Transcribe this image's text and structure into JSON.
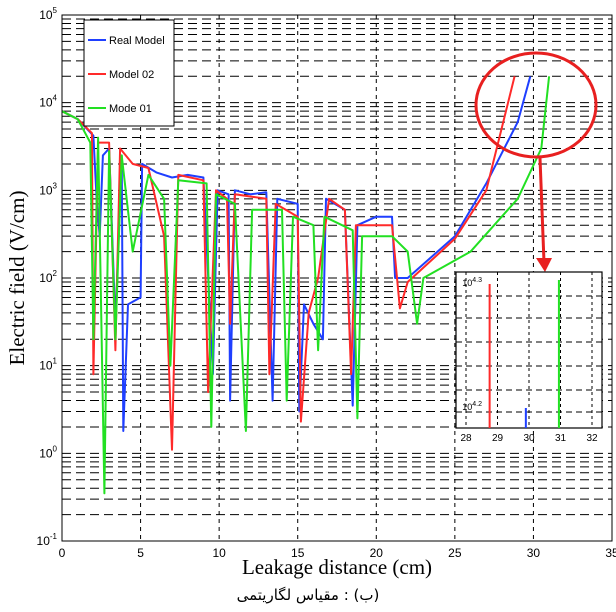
{
  "chart_data": {
    "type": "line",
    "title": "",
    "xlabel": "Leakage distance (cm)",
    "ylabel": "Electric field (V/cm)",
    "xlim": [
      0,
      35
    ],
    "ylim_exp": [
      -1,
      5
    ],
    "yscale": "log",
    "grid": "dashed",
    "legend_position": "top-left",
    "x_ticks": [
      "0",
      "5",
      "10",
      "15",
      "20",
      "25",
      "30",
      "35"
    ],
    "y_ticks": [
      {
        "base": "10",
        "exp": "-1"
      },
      {
        "base": "10",
        "exp": "0"
      },
      {
        "base": "10",
        "exp": "1"
      },
      {
        "base": "10",
        "exp": "2"
      },
      {
        "base": "10",
        "exp": "3"
      },
      {
        "base": "10",
        "exp": "4"
      },
      {
        "base": "10",
        "exp": "5"
      }
    ],
    "series": [
      {
        "name": "Real Model",
        "color": "#1f3fff",
        "points": [
          [
            0,
            8000
          ],
          [
            1,
            6500
          ],
          [
            2,
            4200
          ],
          [
            2.2,
            800
          ],
          [
            2.4,
            300
          ],
          [
            2.6,
            2500
          ],
          [
            3,
            3000
          ],
          [
            3.4,
            30
          ],
          [
            3.8,
            2500
          ],
          [
            3.9,
            1.8
          ],
          [
            4.2,
            50
          ],
          [
            5.0,
            60
          ],
          [
            5.1,
            2000
          ],
          [
            6,
            1600
          ],
          [
            7,
            1400
          ],
          [
            8,
            1500
          ],
          [
            9,
            1400
          ],
          [
            9.6,
            8
          ],
          [
            9.9,
            1000
          ],
          [
            10.6,
            900
          ],
          [
            10.7,
            4
          ],
          [
            11.0,
            1000
          ],
          [
            12.0,
            900
          ],
          [
            13.0,
            950
          ],
          [
            13.4,
            4
          ],
          [
            13.7,
            800
          ],
          [
            15,
            700
          ],
          [
            15.1,
            3
          ],
          [
            15.4,
            50
          ],
          [
            16,
            30
          ],
          [
            16.6,
            20
          ],
          [
            16.8,
            800
          ],
          [
            18,
            600
          ],
          [
            18.5,
            3.5
          ],
          [
            18.8,
            400
          ],
          [
            20,
            500
          ],
          [
            21,
            500
          ],
          [
            21.2,
            100
          ],
          [
            22,
            100
          ],
          [
            25,
            300
          ],
          [
            27,
            1200
          ],
          [
            29,
            6000
          ],
          [
            29.8,
            20000
          ]
        ]
      },
      {
        "name": "Model 02",
        "color": "#ff2a2a",
        "points": [
          [
            0,
            8000
          ],
          [
            1,
            6500
          ],
          [
            1.9,
            4500
          ],
          [
            2.0,
            8
          ],
          [
            2.3,
            3500
          ],
          [
            3,
            3500
          ],
          [
            3.4,
            15
          ],
          [
            3.7,
            3000
          ],
          [
            4.5,
            2000
          ],
          [
            5.5,
            1800
          ],
          [
            6.5,
            300
          ],
          [
            7,
            1.1
          ],
          [
            7.4,
            1500
          ],
          [
            9,
            1300
          ],
          [
            9.3,
            5
          ],
          [
            9.8,
            1000
          ],
          [
            10.5,
            800
          ],
          [
            10.7,
            30
          ],
          [
            11,
            900
          ],
          [
            13,
            800
          ],
          [
            13.2,
            8
          ],
          [
            13.6,
            700
          ],
          [
            15,
            500
          ],
          [
            15.2,
            2.3
          ],
          [
            15.7,
            40
          ],
          [
            16.3,
            100
          ],
          [
            17,
            800
          ],
          [
            18,
            600
          ],
          [
            18.4,
            8
          ],
          [
            18.7,
            400
          ],
          [
            21,
            400
          ],
          [
            21.5,
            45
          ],
          [
            22,
            90
          ],
          [
            25,
            280
          ],
          [
            27,
            1000
          ],
          [
            28.8,
            20000
          ]
        ]
      },
      {
        "name": "Mode 01",
        "color": "#22e022",
        "points": [
          [
            0,
            8000
          ],
          [
            1,
            6500
          ],
          [
            1.8,
            3500
          ],
          [
            2.0,
            20
          ],
          [
            2.3,
            4000
          ],
          [
            2.7,
            0.35
          ],
          [
            3.0,
            2800
          ],
          [
            3.4,
            20
          ],
          [
            3.8,
            2500
          ],
          [
            4.5,
            200
          ],
          [
            5.5,
            1500
          ],
          [
            6.5,
            800
          ],
          [
            6.9,
            10
          ],
          [
            7.4,
            1300
          ],
          [
            9.2,
            1200
          ],
          [
            9.5,
            2
          ],
          [
            9.8,
            900
          ],
          [
            11,
            700
          ],
          [
            11.7,
            1.8
          ],
          [
            12.1,
            600
          ],
          [
            14,
            600
          ],
          [
            14.3,
            4
          ],
          [
            14.7,
            500
          ],
          [
            16,
            400
          ],
          [
            16.3,
            15
          ],
          [
            16.7,
            500
          ],
          [
            18.5,
            350
          ],
          [
            18.8,
            2.5
          ],
          [
            19.1,
            300
          ],
          [
            21,
            300
          ],
          [
            22,
            200
          ],
          [
            22.6,
            30
          ],
          [
            23,
            100
          ],
          [
            26,
            200
          ],
          [
            29,
            800
          ],
          [
            30.5,
            3000
          ],
          [
            31,
            20000
          ]
        ]
      }
    ],
    "inset": {
      "x_ticks": [
        "28",
        "29",
        "30",
        "31",
        "32"
      ],
      "y_label_top": {
        "base": "10",
        "exp": "4.3"
      },
      "y_label_bottom": {
        "base": "10",
        "exp": "4.2"
      }
    }
  },
  "caption": "(ب) : مقیاس لگاریتمی"
}
